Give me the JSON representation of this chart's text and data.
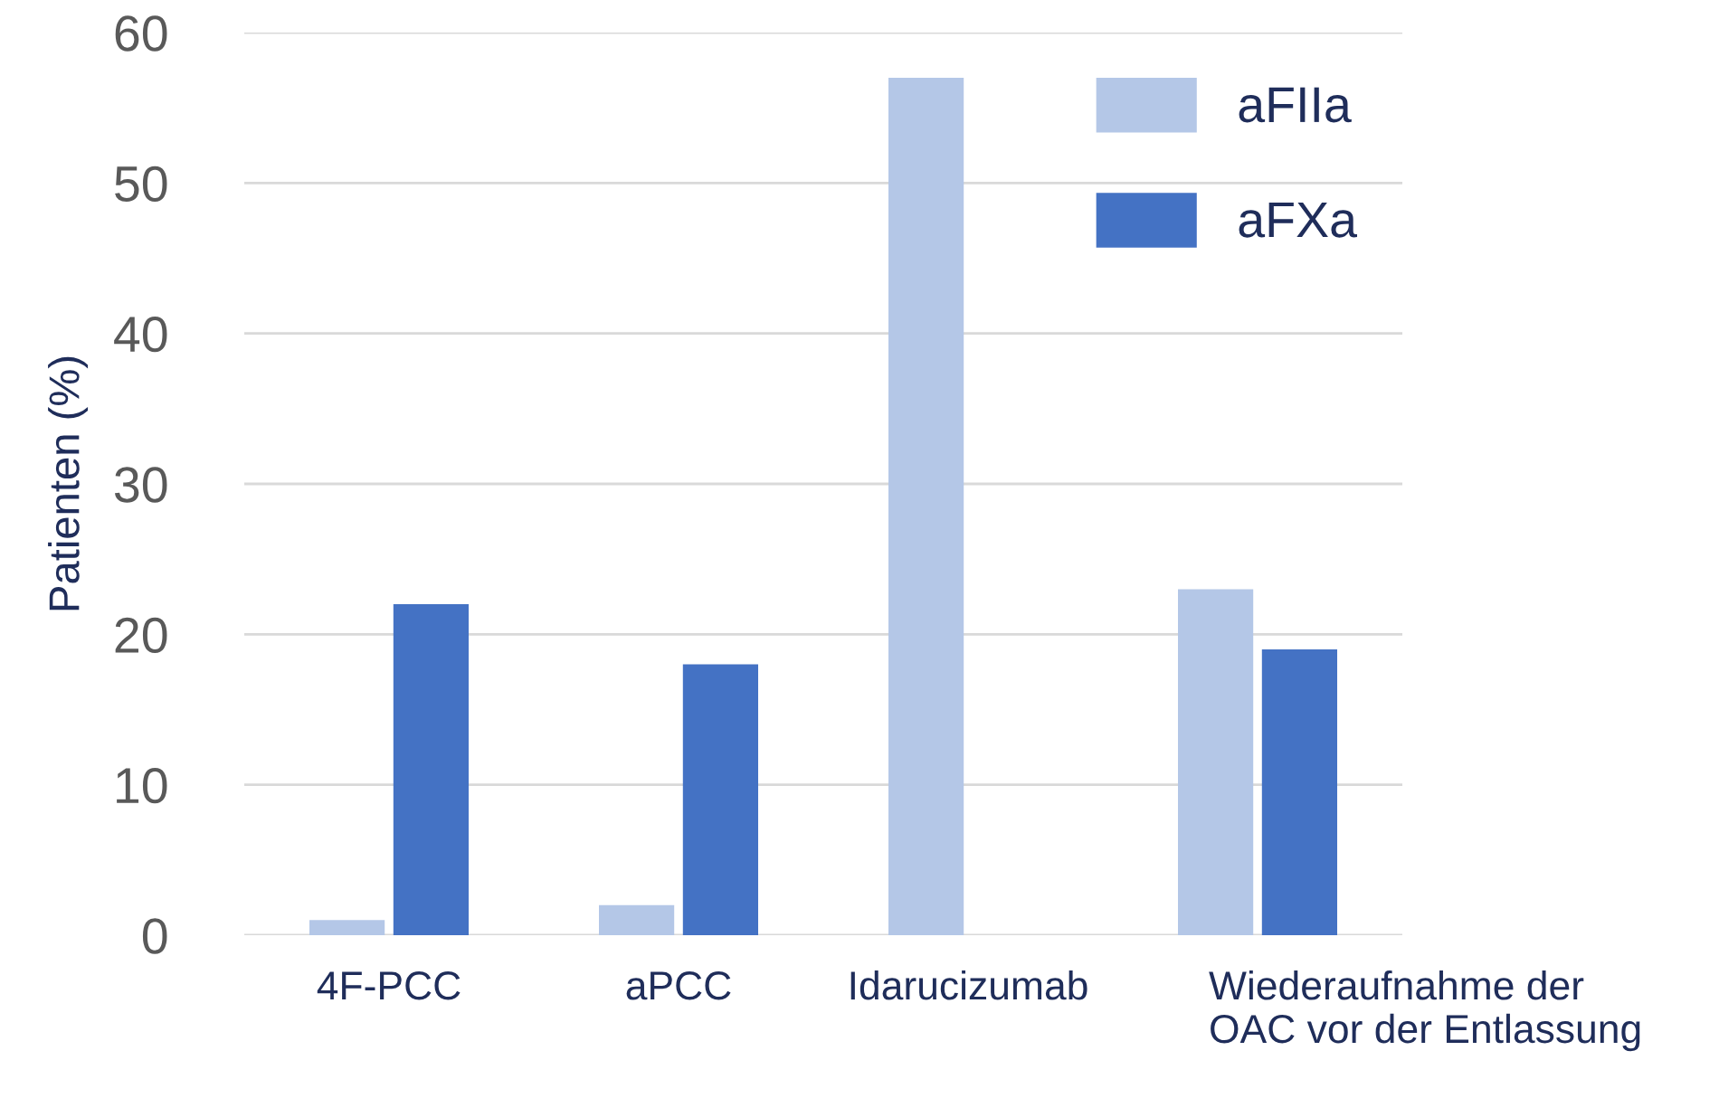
{
  "chart_data": {
    "type": "bar",
    "ylabel": "Patienten (%)",
    "categories": [
      "4F-PCC",
      "aPCC",
      "Idarucizumab",
      "Wiederaufnahme der\nOAC vor der Entlassung"
    ],
    "series": [
      {
        "name": "aFIIa",
        "color": "#b4c7e7",
        "values": [
          1,
          2,
          57,
          23
        ]
      },
      {
        "name": "aFXa",
        "color": "#4472c4",
        "values": [
          22,
          18,
          null,
          19
        ]
      }
    ],
    "ylim": [
      0,
      60
    ],
    "yticks": [
      0,
      10,
      20,
      30,
      40,
      50,
      60
    ],
    "grid": "y",
    "legend": "top right"
  }
}
